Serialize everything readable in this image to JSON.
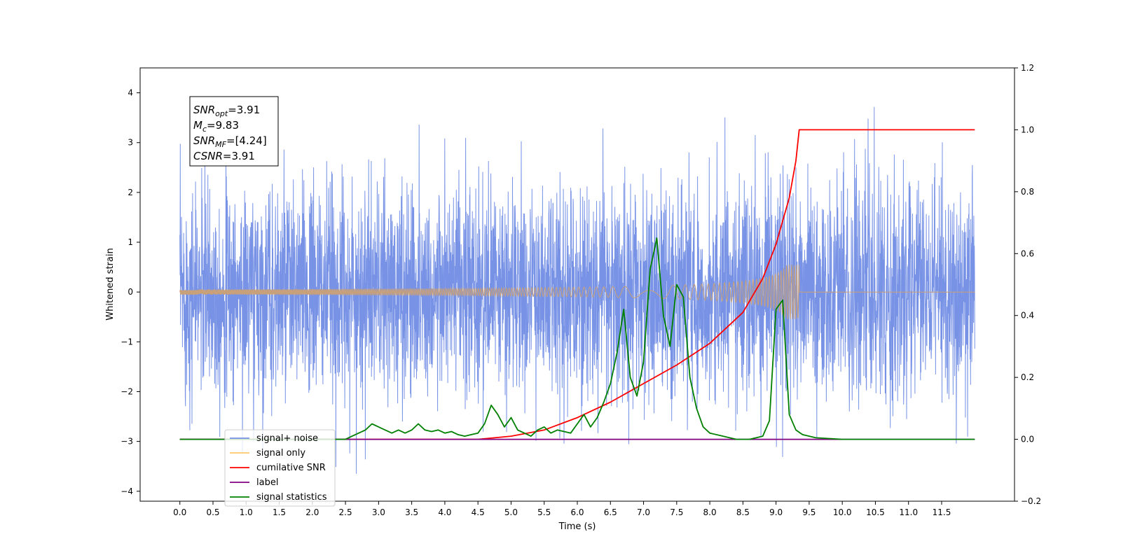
{
  "chart_data": {
    "type": "line",
    "xlabel": "Time (s)",
    "ylabel": "Whitened strain",
    "xlim": [
      -0.6,
      12.6
    ],
    "ylim": [
      -4.2,
      4.5
    ],
    "ylim_right": [
      -0.2,
      1.2
    ],
    "x_ticks": [
      "0.0",
      "0.5",
      "1.0",
      "1.5",
      "2.0",
      "2.5",
      "3.0",
      "3.5",
      "4.0",
      "4.5",
      "5.0",
      "5.5",
      "6.0",
      "6.5",
      "7.0",
      "7.5",
      "8.0",
      "8.5",
      "9.0",
      "9.5",
      "10.0",
      "10.5",
      "11.0",
      "11.5"
    ],
    "y_ticks_left": [
      "4",
      "3",
      "2",
      "1",
      "0",
      "−1",
      "−2",
      "−3",
      "−4"
    ],
    "y_ticks_right": [
      "1.2",
      "1.0",
      "0.8",
      "0.6",
      "0.4",
      "0.2",
      "0.0",
      "−0.2"
    ],
    "grid": false,
    "legend_position": "lower-left",
    "annotation": {
      "lines": [
        {
          "var": "SNR",
          "sub": "opt",
          "value": "=3.91"
        },
        {
          "var": "M",
          "sub": "c",
          "value": "=9.83"
        },
        {
          "var": "SNR",
          "sub": "MF",
          "value": "=[4.24]"
        },
        {
          "var": "CSNR",
          "sub": "",
          "value": "=3.91"
        }
      ]
    },
    "series": [
      {
        "name": "signal+ noise",
        "axis": "left",
        "color": "#7893e6",
        "description_range": [
          0.0,
          12.0
        ],
        "noise_sigma": 1.0,
        "max_value": 4.1,
        "min_value": -3.75
      },
      {
        "name": "signal only",
        "axis": "left",
        "color": "#c8a07a",
        "chirp_end": 9.35,
        "amplitude_end": 0.55
      },
      {
        "name": "cumilative SNR",
        "axis": "right",
        "color": "#ff0000",
        "x": [
          0.0,
          4.0,
          4.5,
          5.0,
          5.5,
          6.0,
          6.5,
          7.0,
          7.5,
          8.0,
          8.5,
          8.8,
          9.0,
          9.2,
          9.3,
          9.35,
          12.0
        ],
        "values": [
          0.0,
          0.0,
          0.0,
          0.01,
          0.03,
          0.07,
          0.12,
          0.18,
          0.24,
          0.31,
          0.41,
          0.52,
          0.63,
          0.78,
          0.9,
          1.0,
          1.0
        ]
      },
      {
        "name": "label",
        "axis": "right",
        "color": "#800080",
        "x": [
          0.0,
          12.0
        ],
        "values": [
          0.0,
          0.0
        ]
      },
      {
        "name": "signal statistics",
        "axis": "right",
        "color": "#008000",
        "x": [
          0.0,
          0.5,
          1.0,
          1.5,
          2.0,
          2.5,
          2.6,
          2.7,
          2.8,
          2.9,
          3.0,
          3.1,
          3.2,
          3.3,
          3.4,
          3.5,
          3.6,
          3.7,
          3.8,
          3.9,
          4.0,
          4.1,
          4.2,
          4.3,
          4.4,
          4.5,
          4.6,
          4.7,
          4.8,
          4.9,
          5.0,
          5.1,
          5.2,
          5.3,
          5.4,
          5.5,
          5.6,
          5.7,
          5.8,
          5.9,
          6.0,
          6.1,
          6.2,
          6.3,
          6.4,
          6.5,
          6.6,
          6.7,
          6.8,
          6.9,
          7.0,
          7.1,
          7.2,
          7.3,
          7.4,
          7.5,
          7.6,
          7.7,
          7.8,
          7.9,
          8.0,
          8.2,
          8.4,
          8.6,
          8.8,
          8.9,
          9.0,
          9.1,
          9.2,
          9.3,
          9.4,
          9.6,
          10.0,
          11.0,
          12.0
        ],
        "values": [
          0.0,
          0.0,
          0.0,
          0.0,
          0.0,
          0.0,
          0.01,
          0.02,
          0.03,
          0.05,
          0.04,
          0.03,
          0.02,
          0.03,
          0.02,
          0.03,
          0.05,
          0.03,
          0.025,
          0.03,
          0.02,
          0.025,
          0.015,
          0.01,
          0.015,
          0.02,
          0.05,
          0.11,
          0.08,
          0.04,
          0.07,
          0.03,
          0.02,
          0.01,
          0.03,
          0.04,
          0.02,
          0.03,
          0.025,
          0.02,
          0.05,
          0.08,
          0.04,
          0.07,
          0.12,
          0.18,
          0.28,
          0.42,
          0.2,
          0.14,
          0.25,
          0.55,
          0.65,
          0.4,
          0.3,
          0.5,
          0.46,
          0.2,
          0.1,
          0.04,
          0.02,
          0.01,
          0.0,
          0.0,
          0.01,
          0.06,
          0.42,
          0.45,
          0.08,
          0.03,
          0.015,
          0.005,
          0.0,
          0.0,
          0.0
        ]
      }
    ]
  }
}
